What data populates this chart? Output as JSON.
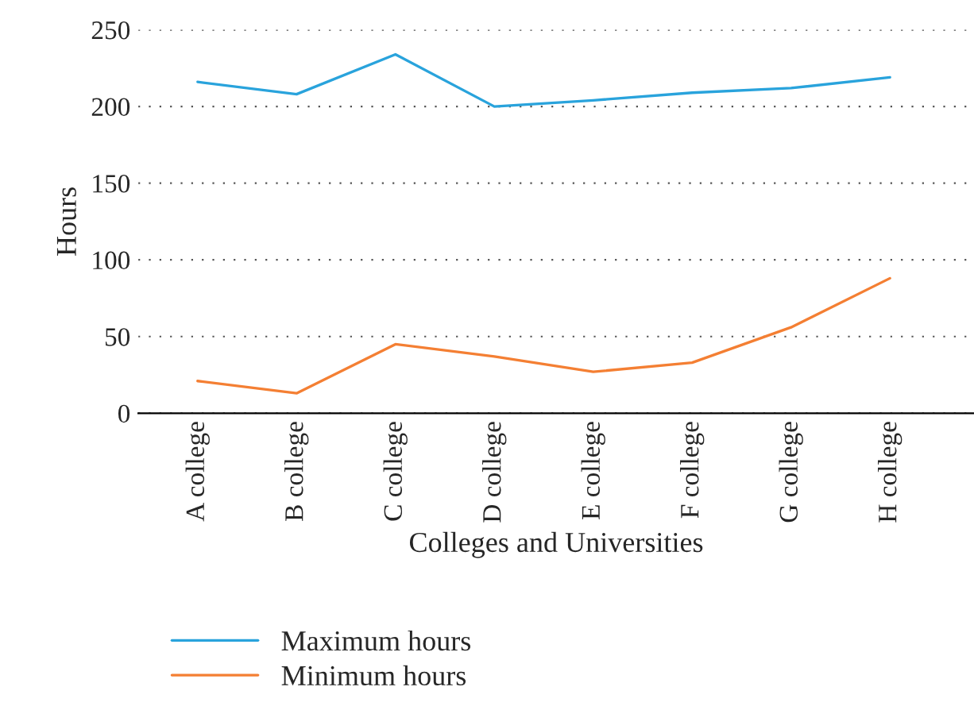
{
  "chart_data": {
    "type": "line",
    "xlabel": "Colleges and Universities",
    "ylabel": "Hours",
    "categories": [
      "A college",
      "B college",
      "C college",
      "D college",
      "E college",
      "F college",
      "G college",
      "H college"
    ],
    "series": [
      {
        "name": "Maximum hours",
        "color": "#29a3dc",
        "values": [
          216,
          208,
          234,
          200,
          204,
          209,
          212,
          219
        ]
      },
      {
        "name": "Minimum hours",
        "color": "#f47f33",
        "values": [
          21,
          13,
          45,
          37,
          27,
          33,
          56,
          88
        ]
      }
    ],
    "ylim": [
      0,
      250
    ],
    "yticks": [
      0,
      50,
      100,
      150,
      200,
      250
    ],
    "grid": "y",
    "legend": "bottom",
    "marker": "none",
    "line_style": "solid"
  }
}
